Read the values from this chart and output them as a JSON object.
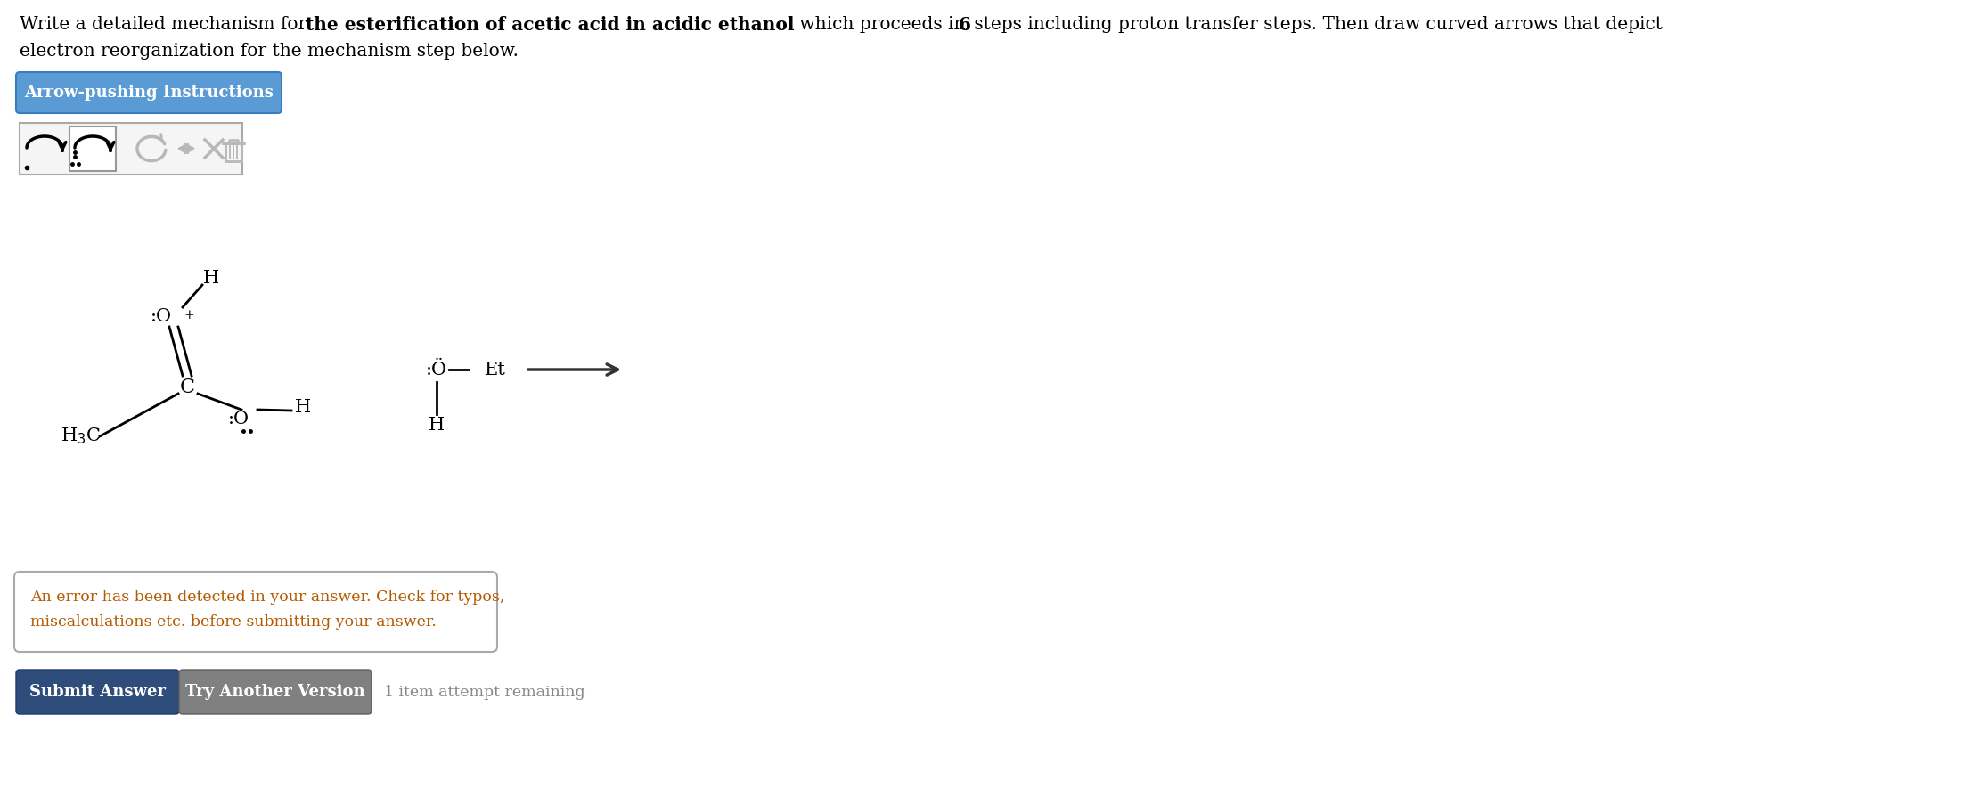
{
  "bg_color": "#ffffff",
  "title_line1_parts": [
    [
      "Write a detailed mechanism for ",
      false
    ],
    [
      "the esterification of acetic acid in acidic ethanol",
      true
    ],
    [
      " which proceeds in ",
      false
    ],
    [
      "6",
      true
    ],
    [
      " steps including proton transfer steps. Then draw curved arrows that depict",
      false
    ]
  ],
  "title_line2": "electron reorganization for the mechanism step below.",
  "button1_text": "Arrow-pushing Instructions",
  "button1_color": "#5b9bd5",
  "button2_text": "Submit Answer",
  "button2_color": "#2e4d7b",
  "button3_text": "Try Another Version",
  "button3_color": "#808080",
  "remaining_text": "1 item attempt remaining",
  "error_text_line1": "An error has been detected in your answer. Check for typos,",
  "error_text_line2": "miscalculations etc. before submitting your answer.",
  "error_color": "#b35a00",
  "error_border": "#aaaaaa",
  "title_fontsize": 14.5,
  "chem_fontsize": 15
}
